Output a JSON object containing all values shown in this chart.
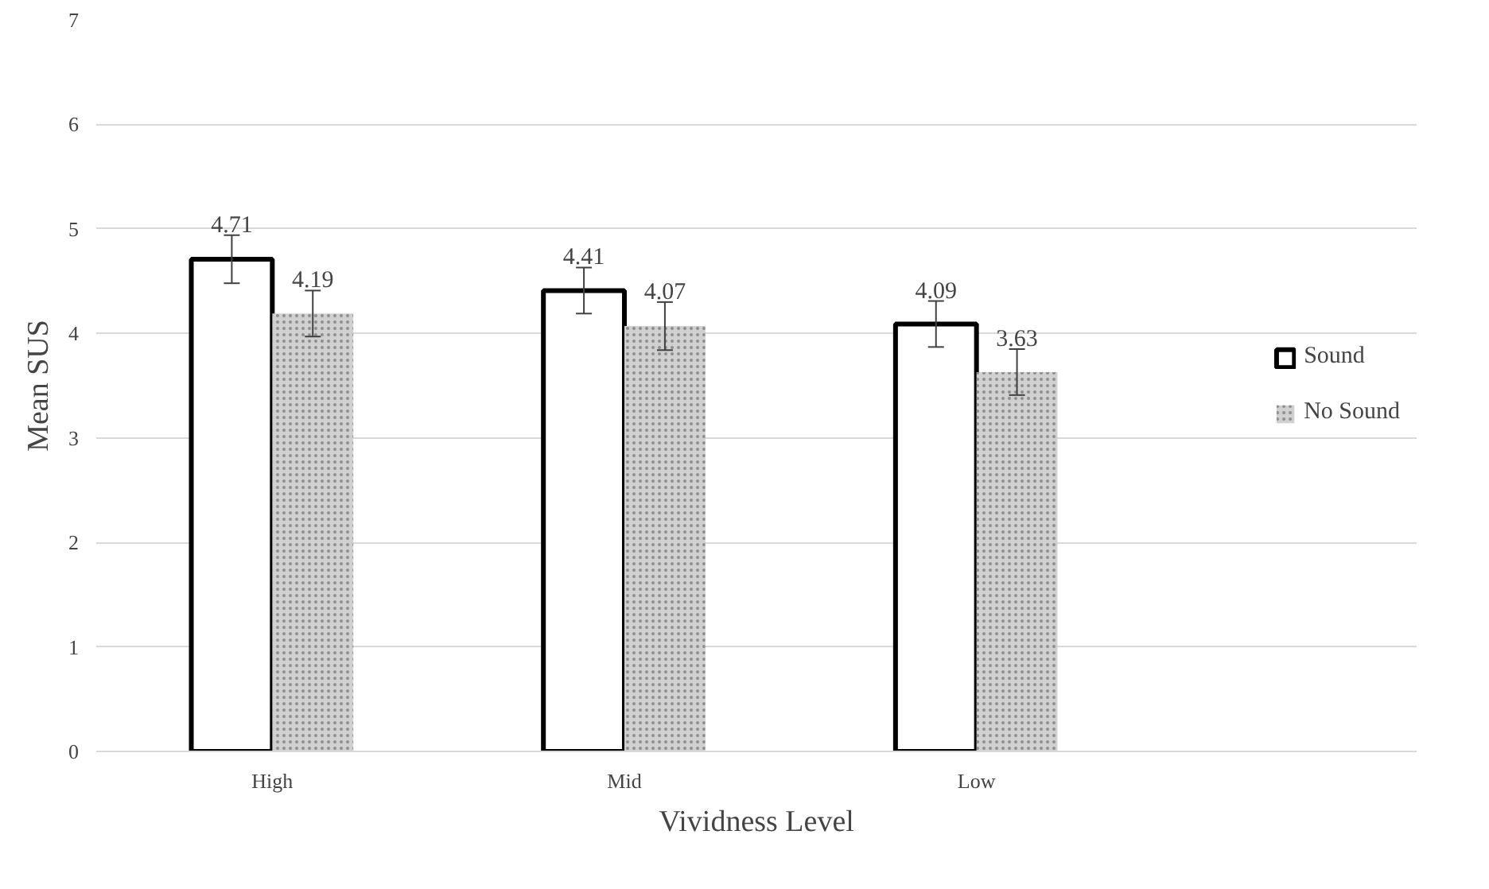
{
  "chart_data": {
    "type": "bar",
    "xlabel": "Vividness Level",
    "ylabel": "Mean SUS",
    "categories": [
      "High",
      "Mid",
      "Low"
    ],
    "series": [
      {
        "name": "Sound",
        "color": "#ffffff",
        "values": [
          4.71,
          4.41,
          4.09
        ],
        "errors": [
          0.23,
          0.22,
          0.22
        ]
      },
      {
        "name": "No Sound",
        "color": "#d0d0d0",
        "values": [
          4.19,
          4.07,
          3.63
        ],
        "errors": [
          0.22,
          0.23,
          0.22
        ]
      }
    ],
    "ylim": [
      0,
      7
    ],
    "yticks": [
      0,
      1,
      2,
      3,
      4,
      5,
      6,
      7
    ],
    "grid": "y",
    "legend": "right",
    "data_labels": true
  }
}
